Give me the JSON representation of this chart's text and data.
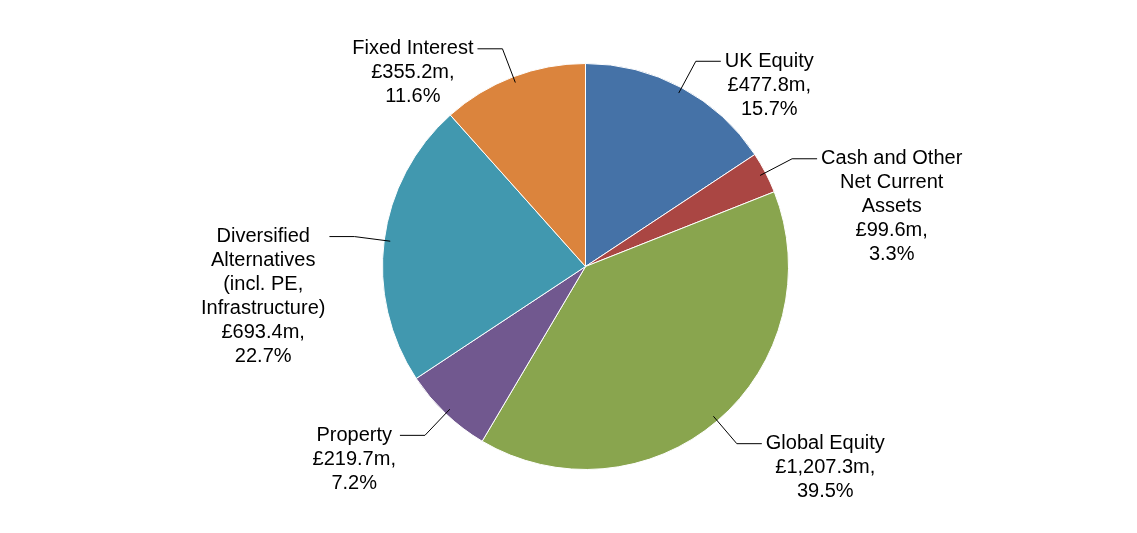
{
  "chart_data": {
    "type": "pie",
    "categories": [
      "UK Equity",
      "Cash and Other Net Current Assets",
      "Global Equity",
      "Property",
      "Diversified Alternatives (incl. PE, Infrastructure)",
      "Fixed Interest"
    ],
    "values": [
      15.7,
      3.3,
      39.5,
      7.2,
      22.7,
      11.6
    ],
    "value_labels": [
      "£477.8m, 15.7%",
      "£99.6m, 3.3%",
      "£1,207.3m, 39.5%",
      "£219.7m, 7.2%",
      "£693.4m, 22.7%",
      "£355.2m, 11.6%"
    ],
    "colors": [
      "#4572a7",
      "#aa4643",
      "#89a54e",
      "#71588f",
      "#4198af",
      "#db843d"
    ],
    "legend": false
  }
}
